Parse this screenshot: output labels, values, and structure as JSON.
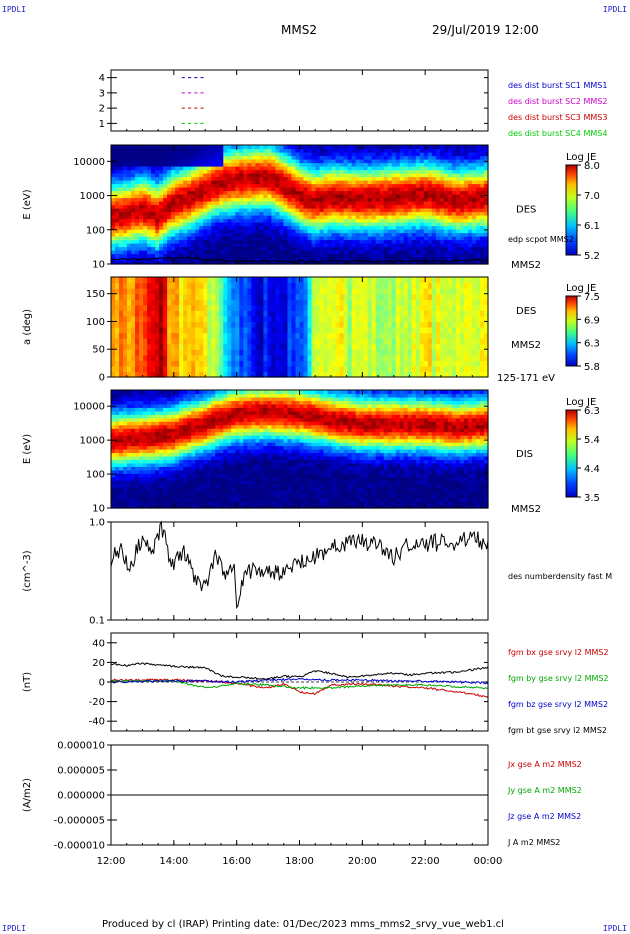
{
  "corner_labels": {
    "top_left": "IPDLI",
    "top_right": "IPDLI",
    "bottom_left": "IPDLI",
    "bottom_right": "IPDLI"
  },
  "header": {
    "spacecraft": "MMS2",
    "date": "29/Jul/2019 12:00"
  },
  "footer": {
    "text": "Produced by cl (IRAP)   Printing date: 01/Dec/2023   mms_mms2_srvy_vue_web1.cl"
  },
  "time_axis": {
    "ticks": [
      "12:00",
      "14:00",
      "16:00",
      "18:00",
      "20:00",
      "22:00",
      "00:00"
    ],
    "range_hours": [
      12,
      24
    ]
  },
  "colors": {
    "mms1": "#0000cc",
    "mms2": "#cc00cc",
    "mms3": "#cc0000",
    "mms4": "#00cc00",
    "bx": "#cc0000",
    "by": "#00aa00",
    "bz": "#0000cc",
    "bt": "#000000"
  },
  "chart_data": [
    {
      "type": "line",
      "panel": "burst-availability",
      "ylim": [
        0.5,
        4.5
      ],
      "yticks": [
        "1",
        "2",
        "3",
        "4"
      ],
      "series": [
        {
          "name": "des dist burst SC1 MMS1",
          "level": 1,
          "color": "#0000cc",
          "segments": [
            [
              14.25,
              14.35
            ],
            [
              14.45,
              14.55
            ],
            [
              14.65,
              14.75
            ],
            [
              14.85,
              14.95
            ]
          ]
        },
        {
          "name": "des dist burst SC2 MMS2",
          "level": 2,
          "color": "#cc00cc",
          "segments": [
            [
              14.25,
              14.35
            ],
            [
              14.45,
              14.55
            ],
            [
              14.65,
              14.75
            ],
            [
              14.85,
              14.95
            ]
          ]
        },
        {
          "name": "des dist burst SC3 MMS3",
          "level": 3,
          "color": "#cc0000",
          "segments": [
            [
              14.25,
              14.35
            ],
            [
              14.45,
              14.55
            ],
            [
              14.65,
              14.75
            ],
            [
              14.85,
              14.95
            ]
          ]
        },
        {
          "name": "des dist burst SC4 MMS4",
          "level": 4,
          "color": "#00cc00",
          "segments": [
            [
              14.25,
              14.35
            ],
            [
              14.45,
              14.55
            ],
            [
              14.65,
              14.75
            ],
            [
              14.85,
              14.95
            ]
          ]
        }
      ]
    },
    {
      "type": "heatmap",
      "panel": "des-energy",
      "ylabel": "E (eV)",
      "scale": "log",
      "ylim": [
        10,
        30000
      ],
      "yticks": [
        "10000",
        "1000",
        "100",
        "10"
      ],
      "yticks_values": [
        10000,
        1000,
        100,
        10
      ],
      "label": "DES",
      "sublabel": "edp scpot MMS2",
      "sc_label": "MMS2",
      "colorbar": {
        "title": "Log JE",
        "ticks": [
          "8.0",
          "7.0",
          "6.1",
          "5.2"
        ],
        "range": [
          5.2,
          8.0
        ]
      },
      "peak_energy_eV": [
        [
          12.0,
          250
        ],
        [
          12.5,
          300
        ],
        [
          13.0,
          400
        ],
        [
          13.5,
          250
        ],
        [
          14.0,
          600
        ],
        [
          14.5,
          900
        ],
        [
          15.0,
          1500
        ],
        [
          15.5,
          2500
        ],
        [
          16.0,
          3000
        ],
        [
          17.0,
          3500
        ],
        [
          17.5,
          2000
        ],
        [
          18.0,
          1000
        ],
        [
          18.5,
          700
        ],
        [
          19.0,
          900
        ],
        [
          20.0,
          800
        ],
        [
          21.0,
          900
        ],
        [
          22.0,
          1100
        ],
        [
          23.0,
          700
        ],
        [
          24.0,
          900
        ]
      ],
      "spacecraft_potential_eV": [
        [
          12.0,
          13
        ],
        [
          13.0,
          14
        ],
        [
          14.0,
          15
        ],
        [
          14.5,
          16
        ],
        [
          15.0,
          13
        ],
        [
          16.0,
          12
        ],
        [
          18.0,
          12
        ],
        [
          20.0,
          12
        ],
        [
          22.0,
          12
        ],
        [
          24.0,
          13
        ]
      ]
    },
    {
      "type": "heatmap",
      "panel": "des-pitch-angle",
      "ylabel": "a (deg)",
      "ylim": [
        0,
        180
      ],
      "yticks": [
        "150",
        "100",
        "50",
        "0"
      ],
      "yticks_values": [
        150,
        100,
        50,
        0
      ],
      "label": "DES",
      "sc_label": "MMS2",
      "energy_range": "125-171 eV",
      "colorbar": {
        "title": "Log JE",
        "ticks": [
          "7.5",
          "6.9",
          "6.3",
          "5.8"
        ],
        "range": [
          5.8,
          7.5
        ]
      },
      "level": [
        [
          12.0,
          0.7
        ],
        [
          13.0,
          0.8
        ],
        [
          13.5,
          0.95
        ],
        [
          14.0,
          0.7
        ],
        [
          15.0,
          0.6
        ],
        [
          15.5,
          0.45
        ],
        [
          16.0,
          0.2
        ],
        [
          17.0,
          0.1
        ],
        [
          18.0,
          0.15
        ],
        [
          18.5,
          0.55
        ],
        [
          19.0,
          0.6
        ],
        [
          20.0,
          0.55
        ],
        [
          22.0,
          0.6
        ],
        [
          24.0,
          0.6
        ]
      ]
    },
    {
      "type": "heatmap",
      "panel": "dis-energy",
      "ylabel": "E (eV)",
      "scale": "log",
      "ylim": [
        10,
        30000
      ],
      "yticks": [
        "10000",
        "1000",
        "100",
        "10"
      ],
      "yticks_values": [
        10000,
        1000,
        100,
        10
      ],
      "label": "DIS",
      "sc_label": "MMS2",
      "colorbar": {
        "title": "Log JE",
        "ticks": [
          "6.3",
          "5.4",
          "4.4",
          "3.5"
        ],
        "range": [
          3.5,
          6.3
        ]
      },
      "peak_energy_eV": [
        [
          12.0,
          1000
        ],
        [
          13.0,
          1200
        ],
        [
          14.0,
          1500
        ],
        [
          15.0,
          3000
        ],
        [
          16.0,
          6000
        ],
        [
          17.0,
          7000
        ],
        [
          18.0,
          6000
        ],
        [
          19.0,
          4000
        ],
        [
          20.0,
          3000
        ],
        [
          22.0,
          3000
        ],
        [
          23.0,
          2500
        ],
        [
          24.0,
          3000
        ]
      ]
    },
    {
      "type": "line",
      "panel": "density",
      "ylabel": "(cm^-3)",
      "scale": "log",
      "ylim": [
        0.1,
        1.0
      ],
      "yticks": [
        "1.0",
        "0.1"
      ],
      "series": [
        {
          "name": "des numberdensity fast M",
          "color": "#000000",
          "points": [
            [
              12.0,
              0.4
            ],
            [
              12.3,
              0.55
            ],
            [
              12.6,
              0.3
            ],
            [
              13.0,
              0.7
            ],
            [
              13.3,
              0.4
            ],
            [
              13.6,
              0.9
            ],
            [
              13.8,
              0.5
            ],
            [
              14.0,
              0.35
            ],
            [
              14.3,
              0.5
            ],
            [
              14.6,
              0.3
            ],
            [
              15.0,
              0.2
            ],
            [
              15.3,
              0.45
            ],
            [
              15.6,
              0.3
            ],
            [
              15.9,
              0.4
            ],
            [
              16.0,
              0.14
            ],
            [
              16.3,
              0.3
            ],
            [
              16.6,
              0.35
            ],
            [
              17.0,
              0.3
            ],
            [
              17.5,
              0.3
            ],
            [
              18.0,
              0.4
            ],
            [
              18.5,
              0.45
            ],
            [
              19.0,
              0.55
            ],
            [
              19.5,
              0.6
            ],
            [
              20.0,
              0.65
            ],
            [
              20.5,
              0.55
            ],
            [
              21.0,
              0.45
            ],
            [
              21.5,
              0.6
            ],
            [
              22.0,
              0.6
            ],
            [
              22.5,
              0.62
            ],
            [
              23.0,
              0.6
            ],
            [
              23.5,
              0.7
            ],
            [
              24.0,
              0.6
            ]
          ]
        }
      ]
    },
    {
      "type": "line",
      "panel": "magnetic-field",
      "ylabel": "(nT)",
      "ylim": [
        -50,
        50
      ],
      "yticks": [
        "40",
        "20",
        "0",
        "-20",
        "-40"
      ],
      "yticks_values": [
        40,
        20,
        0,
        -20,
        -40
      ],
      "series": [
        {
          "name": "fgm bx gse srvy l2 MMS2",
          "color": "#cc0000",
          "points": [
            [
              12.0,
              2
            ],
            [
              14.0,
              2
            ],
            [
              15.0,
              1
            ],
            [
              16.0,
              -1
            ],
            [
              16.5,
              -4
            ],
            [
              17.0,
              -6
            ],
            [
              17.5,
              -2
            ],
            [
              18.0,
              -10
            ],
            [
              18.5,
              -12
            ],
            [
              19.0,
              -3
            ],
            [
              20.0,
              -2
            ],
            [
              21.0,
              -4
            ],
            [
              22.0,
              -6
            ],
            [
              23.0,
              -10
            ],
            [
              24.0,
              -15
            ]
          ]
        },
        {
          "name": "fgm by gse srvy l2 MMS2",
          "color": "#00aa00",
          "points": [
            [
              12.0,
              1
            ],
            [
              14.0,
              1
            ],
            [
              15.0,
              -6
            ],
            [
              16.0,
              -2
            ],
            [
              17.0,
              -3
            ],
            [
              18.0,
              -6
            ],
            [
              19.0,
              -6
            ],
            [
              20.0,
              -4
            ],
            [
              21.0,
              -3
            ],
            [
              22.0,
              -3
            ],
            [
              23.0,
              -5
            ],
            [
              24.0,
              -6
            ]
          ]
        },
        {
          "name": "fgm bz gse srvy l2 MMS2",
          "color": "#0000cc",
          "points": [
            [
              12.0,
              0
            ],
            [
              14.0,
              1
            ],
            [
              15.0,
              1
            ],
            [
              16.0,
              0
            ],
            [
              17.0,
              2
            ],
            [
              18.0,
              3
            ],
            [
              19.0,
              2
            ],
            [
              20.0,
              2
            ],
            [
              21.0,
              1
            ],
            [
              22.0,
              1
            ],
            [
              23.0,
              0
            ],
            [
              24.0,
              -1
            ]
          ]
        },
        {
          "name": "fgm bt gse srvy l2 MMS2",
          "color": "#000000",
          "points": [
            [
              12.0,
              18
            ],
            [
              12.5,
              17
            ],
            [
              13.0,
              19
            ],
            [
              13.5,
              17
            ],
            [
              14.0,
              16
            ],
            [
              14.5,
              15
            ],
            [
              15.0,
              15
            ],
            [
              15.5,
              6
            ],
            [
              16.0,
              5
            ],
            [
              16.5,
              4
            ],
            [
              17.0,
              3
            ],
            [
              17.5,
              6
            ],
            [
              18.0,
              5
            ],
            [
              18.5,
              11
            ],
            [
              19.0,
              9
            ],
            [
              19.5,
              5
            ],
            [
              20.0,
              6
            ],
            [
              20.5,
              8
            ],
            [
              21.0,
              9
            ],
            [
              21.5,
              7
            ],
            [
              22.0,
              9
            ],
            [
              23.0,
              10
            ],
            [
              24.0,
              15
            ]
          ]
        }
      ]
    },
    {
      "type": "line",
      "panel": "current-density",
      "ylabel": "(A/m2)",
      "ylim": [
        -1e-05,
        1e-05
      ],
      "yticks": [
        "0.000010",
        "0.000005",
        "0.000000",
        "-0.000005",
        "-0.000010"
      ],
      "yticks_values": [
        1e-05,
        5e-06,
        0,
        -5e-06,
        -1e-05
      ],
      "series": [
        {
          "name": "Jx gse A m2 MMS2",
          "color": "#cc0000",
          "points": [
            [
              12.0,
              0
            ],
            [
              24.0,
              0
            ]
          ]
        },
        {
          "name": "Jy gse A m2 MMS2",
          "color": "#00aa00",
          "points": [
            [
              12.0,
              0
            ],
            [
              24.0,
              0
            ]
          ]
        },
        {
          "name": "Jz gse A m2 MMS2",
          "color": "#0000cc",
          "points": [
            [
              12.0,
              0
            ],
            [
              24.0,
              0
            ]
          ]
        },
        {
          "name": "J A m2 MMS2",
          "color": "#000000",
          "points": [
            [
              12.0,
              0
            ],
            [
              24.0,
              0
            ]
          ]
        }
      ]
    }
  ]
}
